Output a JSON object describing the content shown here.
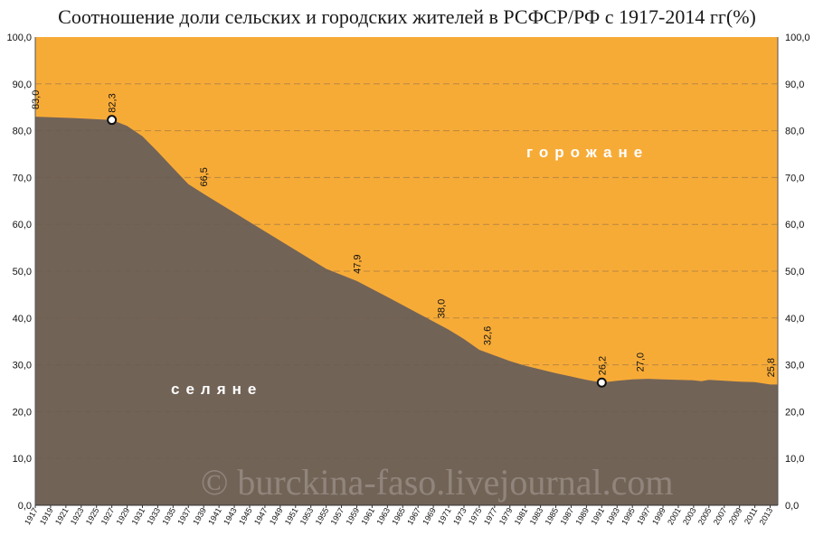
{
  "chart_data": {
    "type": "area",
    "title": "Соотношение доли сельских и городских жителей в РСФСР/РФ с 1917-2014 гг(%)",
    "xlabel": "",
    "ylabel": "",
    "ylim": [
      0,
      100
    ],
    "y_ticks": [
      "0,0",
      "10,0",
      "20,0",
      "30,0",
      "40,0",
      "50,0",
      "60,0",
      "70,0",
      "80,0",
      "90,0",
      "100,0"
    ],
    "x_ticks": [
      "1917",
      "1919",
      "1921",
      "1923",
      "1925",
      "1927",
      "1929",
      "1931",
      "1933",
      "1935",
      "1937",
      "1939",
      "1941",
      "1943",
      "1945",
      "1947",
      "1949",
      "1951",
      "1953",
      "1955",
      "1957",
      "1959",
      "1961",
      "1963",
      "1965",
      "1967",
      "1969",
      "1971",
      "1973",
      "1975",
      "1977",
      "1979",
      "1981",
      "1983",
      "1985",
      "1987",
      "1989",
      "1991",
      "1993",
      "1995",
      "1997",
      "1999",
      "2001",
      "2003",
      "2005",
      "2007",
      "2009",
      "2011",
      "2013"
    ],
    "series": [
      {
        "name": "селяне",
        "color": "#726357",
        "x": [
          1917,
          1922,
          1927,
          1929,
          1931,
          1933,
          1935,
          1937,
          1939,
          1941,
          1945,
          1950,
          1955,
          1959,
          1963,
          1967,
          1971,
          1973,
          1975,
          1977,
          1979,
          1981,
          1985,
          1989,
          1991,
          1993,
          1995,
          1997,
          1999,
          2001,
          2003,
          2004,
          2005,
          2007,
          2009,
          2011,
          2013,
          2014
        ],
        "values": [
          83.0,
          82.7,
          82.3,
          81.0,
          78.8,
          75.5,
          72.0,
          68.6,
          66.5,
          64.5,
          60.5,
          55.5,
          50.5,
          47.9,
          44.5,
          41.0,
          37.5,
          35.5,
          33.2,
          32.0,
          30.8,
          29.8,
          28.2,
          26.8,
          26.2,
          26.6,
          26.9,
          27.0,
          26.9,
          26.8,
          26.7,
          26.5,
          26.8,
          26.6,
          26.4,
          26.3,
          25.8,
          25.8
        ]
      },
      {
        "name": "горожане",
        "color": "#f7ab37",
        "values_note": "100 minus rural share"
      }
    ],
    "data_labels": [
      {
        "year": 1917,
        "text": "83,0"
      },
      {
        "year": 1927,
        "text": "82,3"
      },
      {
        "year": 1939,
        "text": "66,5"
      },
      {
        "year": 1959,
        "text": "47,9"
      },
      {
        "year": 1970,
        "text": "38,0"
      },
      {
        "year": 1976,
        "text": "32,6"
      },
      {
        "year": 1991,
        "text": "26,2"
      },
      {
        "year": 1996,
        "text": "27,0"
      },
      {
        "year": 2014,
        "text": "25,8"
      }
    ],
    "markers": [
      1927,
      1991
    ],
    "area_labels": {
      "urban": "горожане",
      "rural": "селяне"
    },
    "watermark": "© burckina-faso.livejournal.com"
  }
}
